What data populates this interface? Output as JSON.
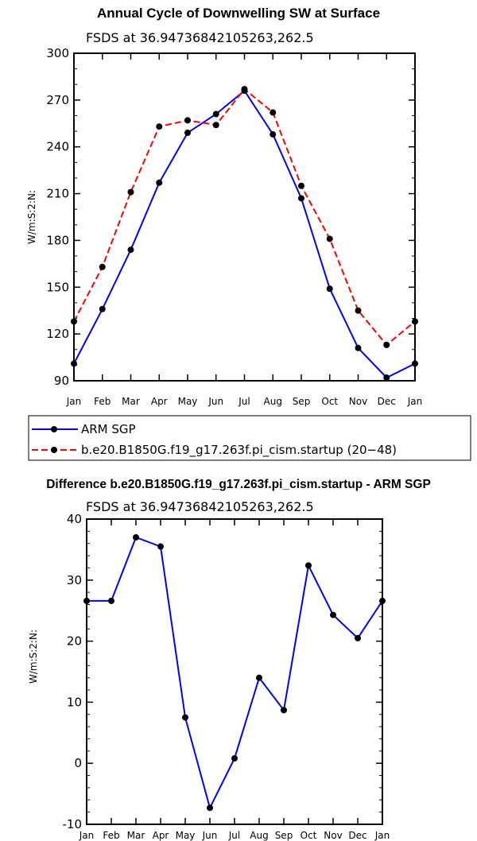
{
  "chart_data": [
    {
      "type": "line",
      "title": "Annual Cycle of Downwelling SW at Surface",
      "subtitle": "FSDS  at  36.94736842105263,262.5",
      "ylabel": "W/m:S:2:N:",
      "xlabel": "",
      "categories": [
        "Jan",
        "Feb",
        "Mar",
        "Apr",
        "May",
        "Jun",
        "Jul",
        "Aug",
        "Sep",
        "Oct",
        "Nov",
        "Dec",
        "Jan"
      ],
      "ylim": [
        90,
        300
      ],
      "yticks": [
        90,
        120,
        150,
        180,
        210,
        240,
        270,
        300
      ],
      "series": [
        {
          "name": "ARM SGP",
          "color": "#0000ff",
          "style": "solid",
          "values": [
            101,
            136,
            174,
            217,
            249,
            261,
            276,
            248,
            207,
            149,
            111,
            92,
            101
          ]
        },
        {
          "name": "b.e20.B1850G.f19_g17.263f.pi_cism.startup (20−48)",
          "color": "#ff0000",
          "style": "dashed",
          "values": [
            128,
            163,
            211,
            253,
            257,
            254,
            277,
            262,
            215,
            181,
            135,
            113,
            128
          ]
        }
      ]
    },
    {
      "type": "line",
      "title": "Difference b.e20.B1850G.f19_g17.263f.pi_cism.startup - ARM SGP",
      "subtitle": "FSDS  at  36.94736842105263,262.5",
      "ylabel": "W/m:S:2:N:",
      "xlabel": "",
      "categories": [
        "Jan",
        "Feb",
        "Mar",
        "Apr",
        "May",
        "Jun",
        "Jul",
        "Aug",
        "Sep",
        "Oct",
        "Nov",
        "Dec",
        "Jan"
      ],
      "ylim": [
        -10,
        40
      ],
      "yticks": [
        -10,
        0,
        10,
        20,
        30,
        40
      ],
      "series": [
        {
          "name": "Difference",
          "color": "#0000ff",
          "style": "solid",
          "values": [
            26.6,
            26.6,
            37,
            35.5,
            7.5,
            -7.3,
            0.8,
            14,
            8.7,
            32.4,
            24.3,
            20.5,
            26.6
          ]
        }
      ]
    }
  ]
}
